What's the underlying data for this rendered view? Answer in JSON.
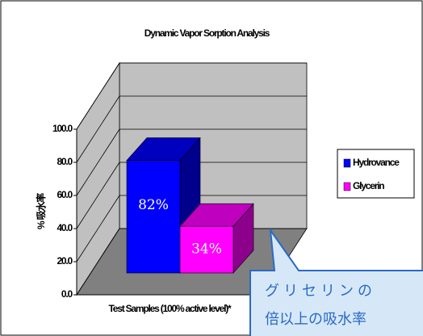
{
  "chart_data": {
    "type": "bar3d",
    "title": "Dynamic Vapor Sorption Analysis",
    "y_label": "% 吸水率",
    "x_label": "Test Samples (100% active level)*",
    "ylim": [
      0,
      100
    ],
    "yticks": [
      {
        "value": 0,
        "label": "0.0"
      },
      {
        "value": 20,
        "label": "20.0"
      },
      {
        "value": 40,
        "label": "40.0"
      },
      {
        "value": 60,
        "label": "60.0"
      },
      {
        "value": 80,
        "label": "80.0"
      },
      {
        "value": 100,
        "label": "100.0"
      }
    ],
    "grid": true,
    "legend": "right",
    "series": [
      {
        "name": "Hydrovance",
        "color": "#0000ff",
        "values": [
          82
        ],
        "value_labels": [
          "82%"
        ]
      },
      {
        "name": "Glycerin",
        "color": "#ff00ff",
        "values": [
          34
        ],
        "value_labels": [
          "34%"
        ]
      }
    ],
    "annotations": [
      "グリセリンの",
      "倍以上の吸水率"
    ]
  }
}
